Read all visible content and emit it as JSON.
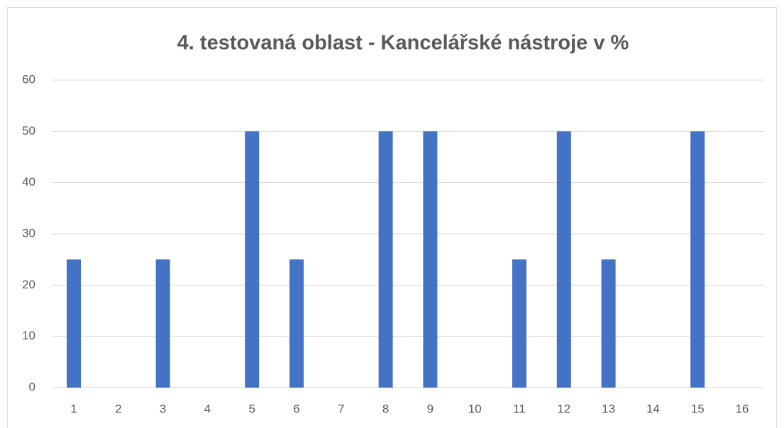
{
  "chart_data": {
    "type": "bar",
    "title": "4. testovaná oblast - Kancelářské nástroje v %",
    "categories": [
      "1",
      "2",
      "3",
      "4",
      "5",
      "6",
      "7",
      "8",
      "9",
      "10",
      "11",
      "12",
      "13",
      "14",
      "15",
      "16"
    ],
    "values": [
      25,
      0,
      25,
      0,
      50,
      25,
      0,
      50,
      50,
      0,
      25,
      50,
      25,
      0,
      50,
      0
    ],
    "color": "#4472c4",
    "ylim": [
      0,
      60
    ],
    "yticks": [
      0,
      10,
      20,
      30,
      40,
      50,
      60
    ],
    "grid": true
  }
}
